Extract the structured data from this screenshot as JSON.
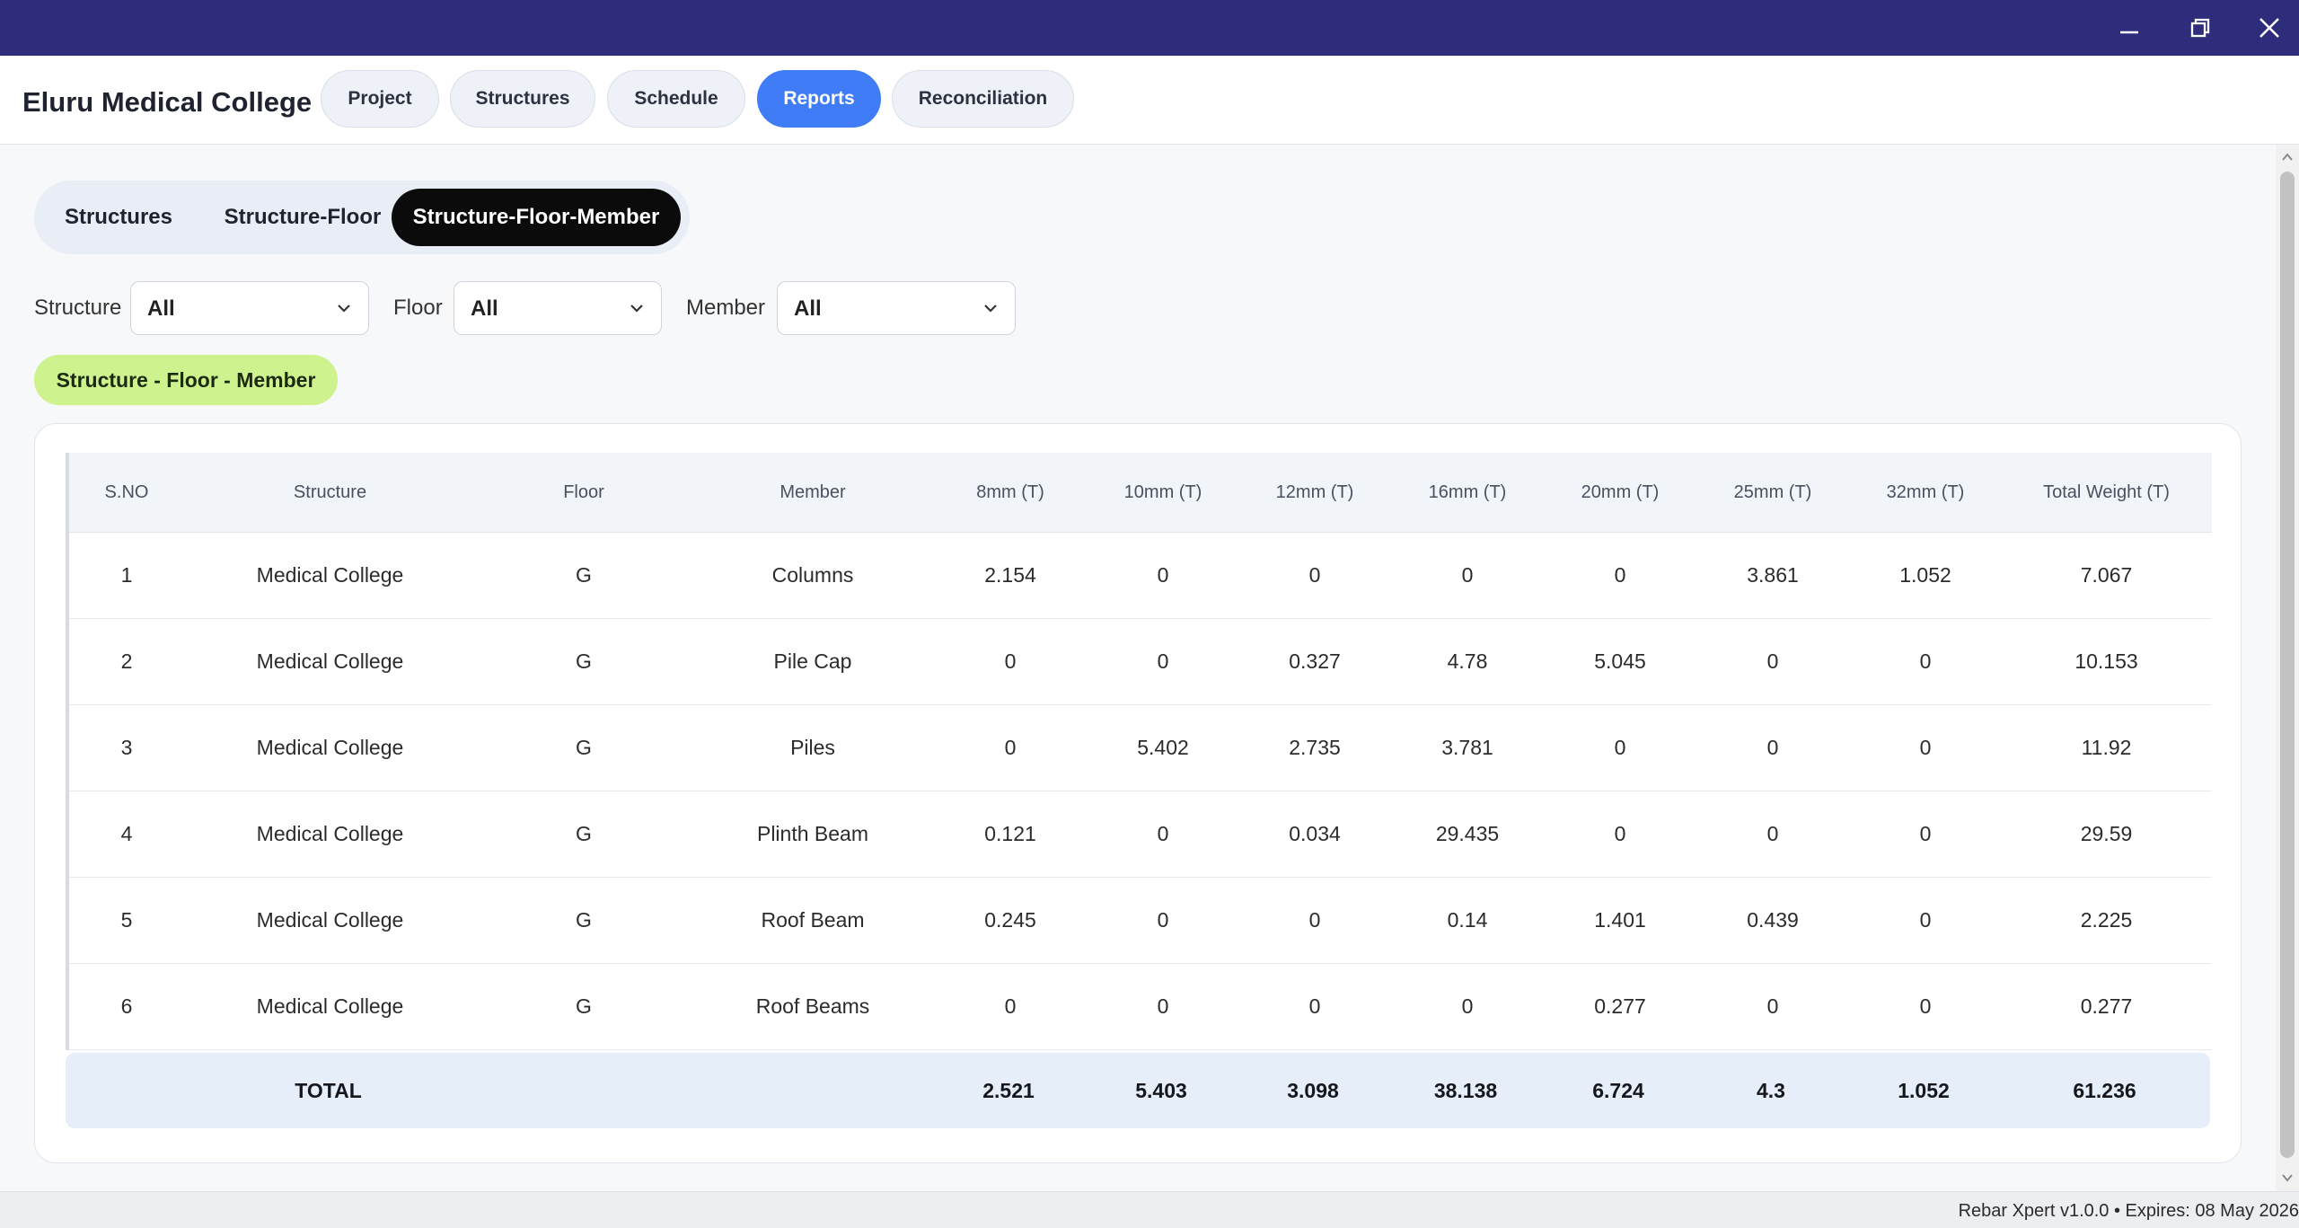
{
  "window": {
    "controls": [
      "minimize",
      "restore",
      "close"
    ]
  },
  "header": {
    "app_title": "Eluru Medical College",
    "tabs": [
      {
        "label": "Project",
        "active": false
      },
      {
        "label": "Structures",
        "active": false
      },
      {
        "label": "Schedule",
        "active": false
      },
      {
        "label": "Reports",
        "active": true
      },
      {
        "label": "Reconciliation",
        "active": false
      }
    ],
    "accent_color": "#3f7cf5",
    "titlebar_color": "#2d2d7c"
  },
  "report_views": [
    {
      "label": "Structures",
      "active": false
    },
    {
      "label": "Structure-Floor",
      "active": false
    },
    {
      "label": "Structure-Floor-Member",
      "active": true
    }
  ],
  "filters": [
    {
      "label": "Structure",
      "value": "All"
    },
    {
      "label": "Floor",
      "value": "All"
    },
    {
      "label": "Member",
      "value": "All"
    }
  ],
  "section_badge": "Structure - Floor - Member",
  "table": {
    "columns": [
      "S.NO",
      "Structure",
      "Floor",
      "Member",
      "8mm (T)",
      "10mm (T)",
      "12mm (T)",
      "16mm (T)",
      "20mm (T)",
      "25mm (T)",
      "32mm (T)",
      "Total Weight (T)"
    ],
    "rows": [
      [
        "1",
        "Medical College",
        "G",
        "Columns",
        "2.154",
        "0",
        "0",
        "0",
        "0",
        "3.861",
        "1.052",
        "7.067"
      ],
      [
        "2",
        "Medical College",
        "G",
        "Pile Cap",
        "0",
        "0",
        "0.327",
        "4.78",
        "5.045",
        "0",
        "0",
        "10.153"
      ],
      [
        "3",
        "Medical College",
        "G",
        "Piles",
        "0",
        "5.402",
        "2.735",
        "3.781",
        "0",
        "0",
        "0",
        "11.92"
      ],
      [
        "4",
        "Medical College",
        "G",
        "Plinth Beam",
        "0.121",
        "0",
        "0.034",
        "29.435",
        "0",
        "0",
        "0",
        "29.59"
      ],
      [
        "5",
        "Medical College",
        "G",
        "Roof Beam",
        "0.245",
        "0",
        "0",
        "0.14",
        "1.401",
        "0.439",
        "0",
        "2.225"
      ],
      [
        "6",
        "Medical College",
        "G",
        "Roof Beams",
        "0",
        "0",
        "0",
        "0",
        "0.277",
        "0",
        "0",
        "0.277"
      ]
    ],
    "total": {
      "label": "TOTAL",
      "values": [
        "2.521",
        "5.403",
        "3.098",
        "38.138",
        "6.724",
        "4.3",
        "1.052",
        "61.236"
      ]
    }
  },
  "status": {
    "text": "Rebar Xpert v1.0.0 • Expires: 08 May 2026"
  }
}
